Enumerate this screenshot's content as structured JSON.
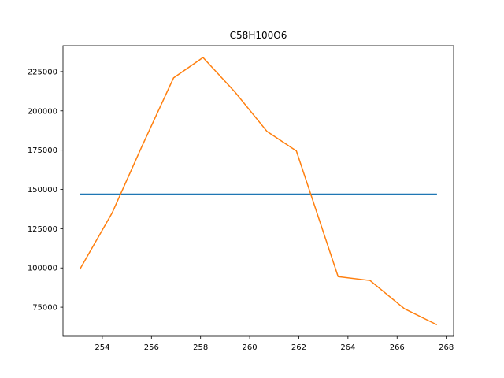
{
  "chart_data": {
    "type": "line",
    "title": "C58H100O6",
    "xlabel": "",
    "ylabel": "",
    "xlim": [
      252.4,
      268.3
    ],
    "ylim": [
      56500,
      241500
    ],
    "grid": false,
    "xticks": [
      254,
      256,
      258,
      260,
      262,
      264,
      266,
      268
    ],
    "xtick_labels": [
      "254",
      "256",
      "258",
      "260",
      "262",
      "264",
      "266",
      "268"
    ],
    "yticks": [
      75000,
      100000,
      125000,
      150000,
      175000,
      200000,
      225000
    ],
    "ytick_labels": [
      "75000",
      "100000",
      "125000",
      "150000",
      "175000",
      "200000",
      "225000"
    ],
    "series": [
      {
        "color": "#1f77b4",
        "x": [
          253.1,
          267.6
        ],
        "y": [
          147000,
          147000
        ]
      },
      {
        "color": "#ff7f0e",
        "x": [
          253.1,
          254.4,
          255.6,
          256.9,
          258.1,
          259.4,
          260.7,
          261.9,
          263.6,
          264.9,
          266.3,
          267.6
        ],
        "y": [
          99500,
          135000,
          177000,
          221000,
          234000,
          212000,
          187000,
          174500,
          94500,
          92000,
          74000,
          64000
        ]
      }
    ]
  }
}
